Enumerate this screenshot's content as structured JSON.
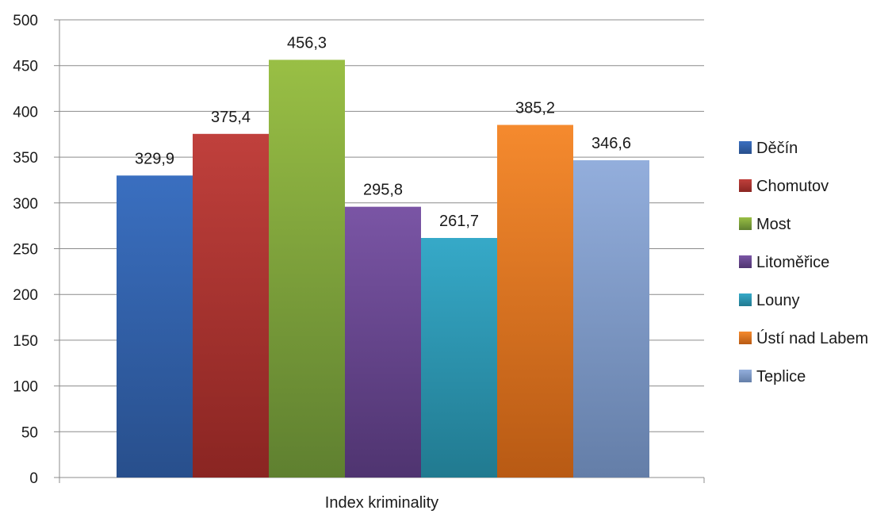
{
  "chart_data": {
    "type": "bar",
    "categories": [
      "Index kriminality"
    ],
    "series": [
      {
        "name": "Děčín",
        "values": [
          329.9
        ],
        "label": "329,9",
        "color_top": "#3a6fc0",
        "color_bottom": "#284f8c"
      },
      {
        "name": "Chomutov",
        "values": [
          375.4
        ],
        "label": "375,4",
        "color_top": "#c0403c",
        "color_bottom": "#8a2522"
      },
      {
        "name": "Most",
        "values": [
          456.3
        ],
        "label": "456,3",
        "color_top": "#99bf45",
        "color_bottom": "#5f8030"
      },
      {
        "name": "Litoměřice",
        "values": [
          295.8
        ],
        "label": "295,8",
        "color_top": "#7a55a5",
        "color_bottom": "#4f3470"
      },
      {
        "name": "Louny",
        "values": [
          261.7
        ],
        "label": "261,7",
        "color_top": "#36a9c8",
        "color_bottom": "#217a90"
      },
      {
        "name": "Ústí nad Labem",
        "values": [
          385.2
        ],
        "label": "385,2",
        "color_top": "#f58a2e",
        "color_bottom": "#b85a14"
      },
      {
        "name": "Teplice",
        "values": [
          346.6
        ],
        "label": "346,6",
        "color_top": "#93aedc",
        "color_bottom": "#647ea8"
      }
    ],
    "title": "",
    "xlabel": "",
    "ylabel": "",
    "ylim": [
      0,
      500
    ],
    "yticks": [
      "0",
      "50",
      "100",
      "150",
      "200",
      "250",
      "300",
      "350",
      "400",
      "450",
      "500"
    ],
    "grid": true,
    "legend_position": "right"
  }
}
